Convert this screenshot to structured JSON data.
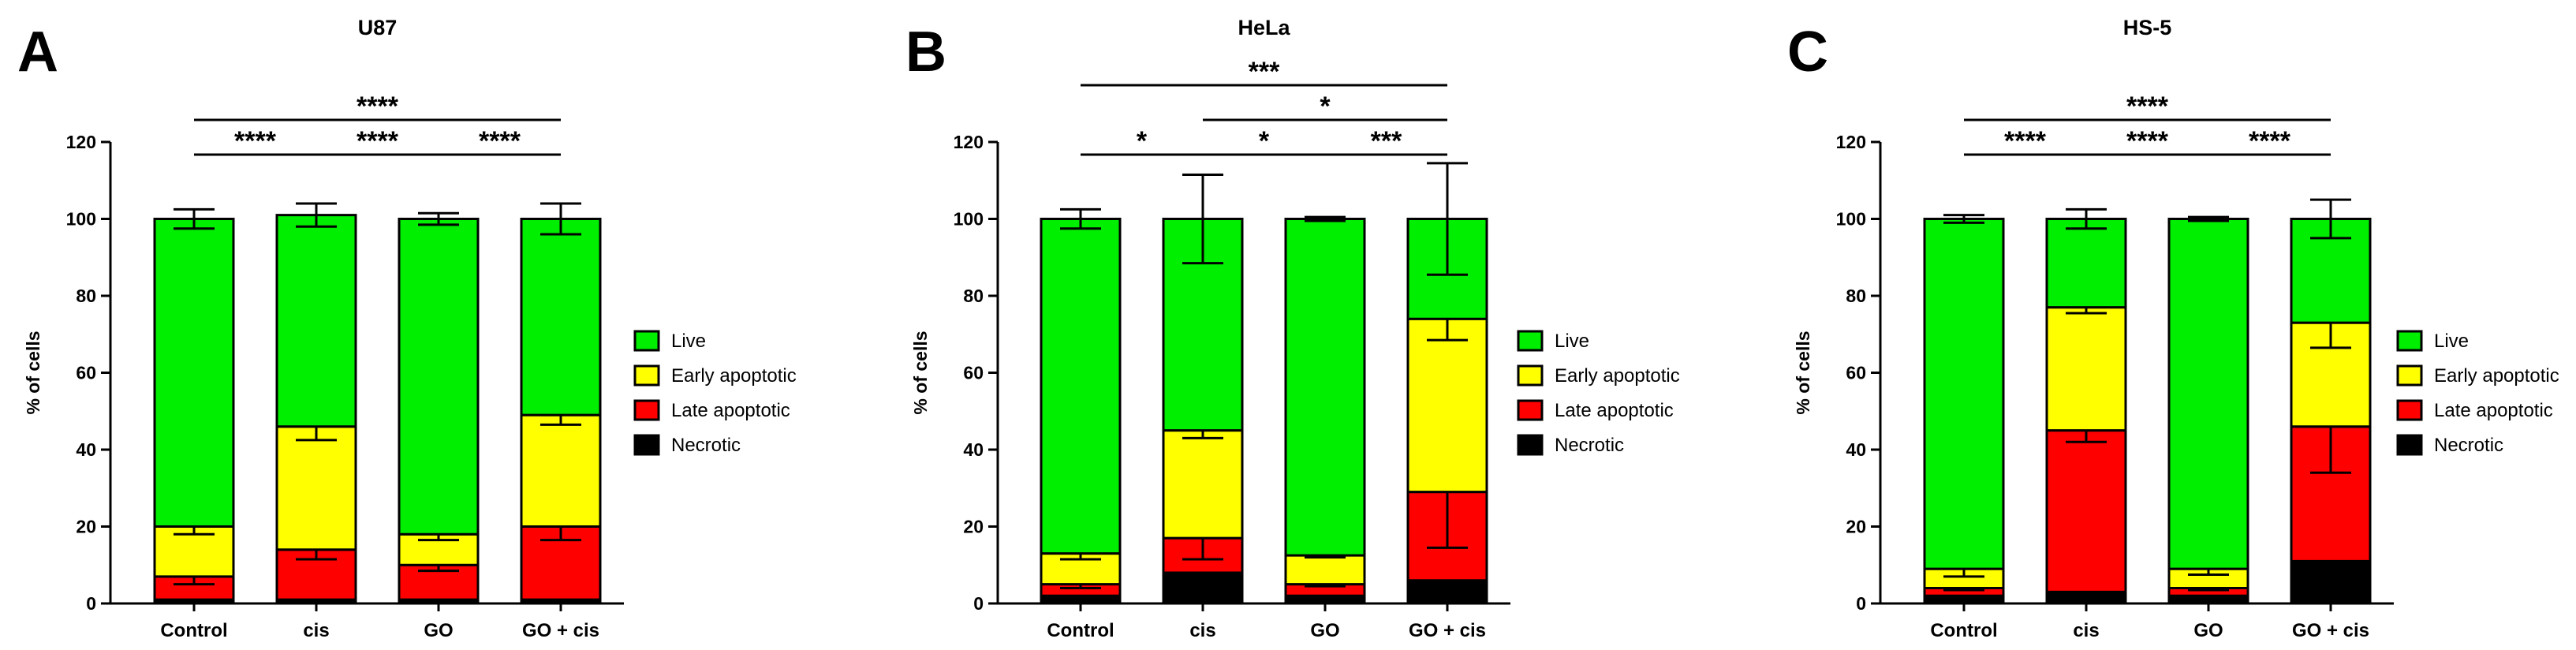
{
  "chart_data": [
    {
      "type": "bar",
      "panel": "A",
      "title": "U87",
      "ylabel": "% of cells",
      "ylim": [
        0,
        120
      ],
      "yticks": [
        0,
        20,
        40,
        60,
        80,
        100,
        120
      ],
      "stacked": true,
      "categories": [
        "Control",
        "cis",
        "GO",
        "GO + cis"
      ],
      "series": [
        {
          "name": "Necrotic",
          "values": [
            1,
            1,
            1,
            1
          ],
          "errors": [
            0.5,
            0.5,
            0.5,
            0.5
          ]
        },
        {
          "name": "Late apoptotic",
          "values": [
            6,
            13,
            9,
            19
          ],
          "errors": [
            2,
            2.5,
            1.5,
            3.5
          ]
        },
        {
          "name": "Early apoptotic",
          "values": [
            13,
            32,
            8,
            29
          ],
          "errors": [
            2,
            3.5,
            1.5,
            2.5
          ]
        },
        {
          "name": "Live",
          "values": [
            80,
            55,
            82,
            51
          ],
          "errors": [
            2.5,
            3,
            1.5,
            4
          ]
        }
      ],
      "legend": [
        "Live",
        "Early apoptotic",
        "Late apoptotic",
        "Necrotic"
      ],
      "legend_position": "right",
      "significance": [
        {
          "from": 0,
          "to": 1,
          "label": "****",
          "level": 0
        },
        {
          "from": 1,
          "to": 2,
          "label": "****",
          "level": 0
        },
        {
          "from": 2,
          "to": 3,
          "label": "****",
          "level": 0
        },
        {
          "from": 0,
          "to": 3,
          "label": "****",
          "level": 1
        }
      ]
    },
    {
      "type": "bar",
      "panel": "B",
      "title": "HeLa",
      "ylabel": "% of cells",
      "ylim": [
        0,
        120
      ],
      "yticks": [
        0,
        20,
        40,
        60,
        80,
        100,
        120
      ],
      "stacked": true,
      "categories": [
        "Control",
        "cis",
        "GO",
        "GO + cis"
      ],
      "series": [
        {
          "name": "Necrotic",
          "values": [
            2,
            8,
            2,
            6
          ],
          "errors": [
            0.5,
            1,
            0.5,
            1
          ]
        },
        {
          "name": "Late apoptotic",
          "values": [
            3,
            9,
            3,
            23
          ],
          "errors": [
            1,
            5.5,
            0.5,
            14.5
          ]
        },
        {
          "name": "Early apoptotic",
          "values": [
            8,
            28,
            7.5,
            45
          ],
          "errors": [
            1.5,
            2,
            0.5,
            5.5
          ]
        },
        {
          "name": "Live",
          "values": [
            87,
            55,
            87.5,
            26
          ],
          "errors": [
            2.5,
            11.5,
            0.5,
            14.5
          ]
        }
      ],
      "legend": [
        "Live",
        "Early apoptotic",
        "Late apoptotic",
        "Necrotic"
      ],
      "legend_position": "right",
      "significance": [
        {
          "from": 0,
          "to": 1,
          "label": "*",
          "level": 0
        },
        {
          "from": 1,
          "to": 2,
          "label": "*",
          "level": 0
        },
        {
          "from": 2,
          "to": 3,
          "label": "***",
          "level": 0
        },
        {
          "from": 1,
          "to": 3,
          "label": "*",
          "level": 1
        },
        {
          "from": 0,
          "to": 3,
          "label": "***",
          "level": 2
        }
      ]
    },
    {
      "type": "bar",
      "panel": "C",
      "title": "HS-5",
      "ylabel": "% of cells",
      "ylim": [
        0,
        120
      ],
      "yticks": [
        0,
        20,
        40,
        60,
        80,
        100,
        120
      ],
      "stacked": true,
      "categories": [
        "Control",
        "cis",
        "GO",
        "GO + cis"
      ],
      "series": [
        {
          "name": "Necrotic",
          "values": [
            2,
            3,
            2,
            11
          ],
          "errors": [
            0.5,
            1,
            0.5,
            13.5
          ]
        },
        {
          "name": "Late apoptotic",
          "values": [
            2,
            42,
            2,
            35
          ],
          "errors": [
            0.5,
            3,
            0.5,
            12
          ]
        },
        {
          "name": "Early apoptotic",
          "values": [
            5,
            32,
            5,
            27
          ],
          "errors": [
            2,
            1.5,
            1.5,
            6.5
          ]
        },
        {
          "name": "Live",
          "values": [
            91,
            23,
            91,
            27
          ],
          "errors": [
            1,
            2.5,
            0.5,
            5
          ]
        }
      ],
      "legend": [
        "Live",
        "Early apoptotic",
        "Late apoptotic",
        "Necrotic"
      ],
      "legend_position": "right",
      "significance": [
        {
          "from": 0,
          "to": 1,
          "label": "****",
          "level": 0
        },
        {
          "from": 1,
          "to": 2,
          "label": "****",
          "level": 0
        },
        {
          "from": 2,
          "to": 3,
          "label": "****",
          "level": 0
        },
        {
          "from": 0,
          "to": 3,
          "label": "****",
          "level": 1
        }
      ]
    }
  ],
  "colors": {
    "Live": "#00ee00",
    "Early apoptotic": "#ffff00",
    "Late apoptotic": "#ff0000",
    "Necrotic": "#000000"
  }
}
